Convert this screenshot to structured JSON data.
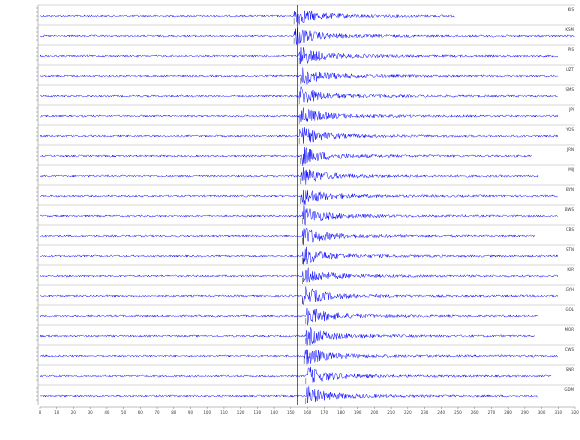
{
  "chart_data": {
    "type": "seismogram",
    "color": "#0000ff",
    "xlim": [
      0,
      320
    ],
    "xticks": [
      0,
      10,
      20,
      30,
      40,
      50,
      60,
      70,
      80,
      90,
      100,
      110,
      120,
      130,
      140,
      150,
      160,
      170,
      180,
      190,
      200,
      210,
      220,
      230,
      240,
      250,
      260,
      270,
      280,
      290,
      300,
      310,
      320
    ],
    "marker": 154,
    "traces": [
      {
        "name": "KIS",
        "arrival": 152,
        "end": 248
      },
      {
        "name": "KSM",
        "arrival": 152,
        "end": 320
      },
      {
        "name": "PIS",
        "arrival": 155,
        "end": 310
      },
      {
        "name": "UZT",
        "arrival": 156,
        "end": 310
      },
      {
        "name": "SMS",
        "arrival": 155,
        "end": 310
      },
      {
        "name": "JPI",
        "arrival": 155,
        "end": 310
      },
      {
        "name": "YOS",
        "arrival": 155,
        "end": 310
      },
      {
        "name": "JRN",
        "arrival": 156,
        "end": 294
      },
      {
        "name": "MIJ",
        "arrival": 156,
        "end": 298
      },
      {
        "name": "BYN",
        "arrival": 156,
        "end": 310
      },
      {
        "name": "BWS",
        "arrival": 157,
        "end": 310
      },
      {
        "name": "CBS",
        "arrival": 157,
        "end": 296
      },
      {
        "name": "STN",
        "arrival": 157,
        "end": 310
      },
      {
        "name": "KIR",
        "arrival": 157,
        "end": 310
      },
      {
        "name": "GYH",
        "arrival": 157,
        "end": 310
      },
      {
        "name": "GOL",
        "arrival": 159,
        "end": 298
      },
      {
        "name": "MOR",
        "arrival": 159,
        "end": 296
      },
      {
        "name": "CWS",
        "arrival": 158,
        "end": 310
      },
      {
        "name": "SNR",
        "arrival": 159,
        "end": 306
      },
      {
        "name": "GDM",
        "arrival": 159,
        "end": 298
      }
    ]
  }
}
